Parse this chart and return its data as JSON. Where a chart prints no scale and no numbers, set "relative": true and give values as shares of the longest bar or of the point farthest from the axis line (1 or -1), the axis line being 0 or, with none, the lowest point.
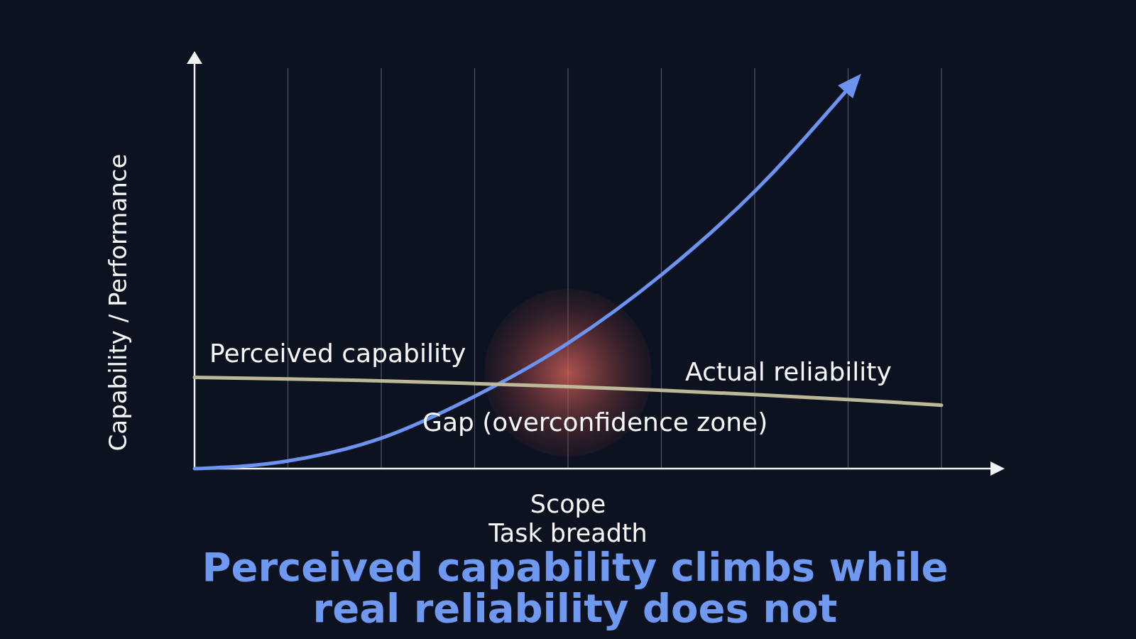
{
  "chart_data": {
    "type": "line",
    "title": "Perceived capability climbs while real reliability does not",
    "xlabel": "Scope\nTask breadth",
    "ylabel": "Capability / Performance",
    "categories": [
      null,
      null,
      null,
      null,
      null,
      null,
      null,
      null,
      null
    ],
    "relative": true,
    "series": [
      {
        "color": "#6b93ef",
        "values": [
          0,
          0.02,
          0.08,
          0.19,
          0.33,
          0.51,
          0.73,
          1,
          null
        ]
      },
      {
        "color": "#bcb898",
        "values": [
          0.24,
          0.236,
          0.231,
          0.224,
          0.216,
          0.206,
          0.195,
          0.182,
          0.167
        ]
      }
    ],
    "grid": "x",
    "marker": "none",
    "line_style": "solid",
    "annotations": [
      "Perceived capability",
      "Actual reliability",
      "Gap (overconfidence zone)"
    ]
  }
}
